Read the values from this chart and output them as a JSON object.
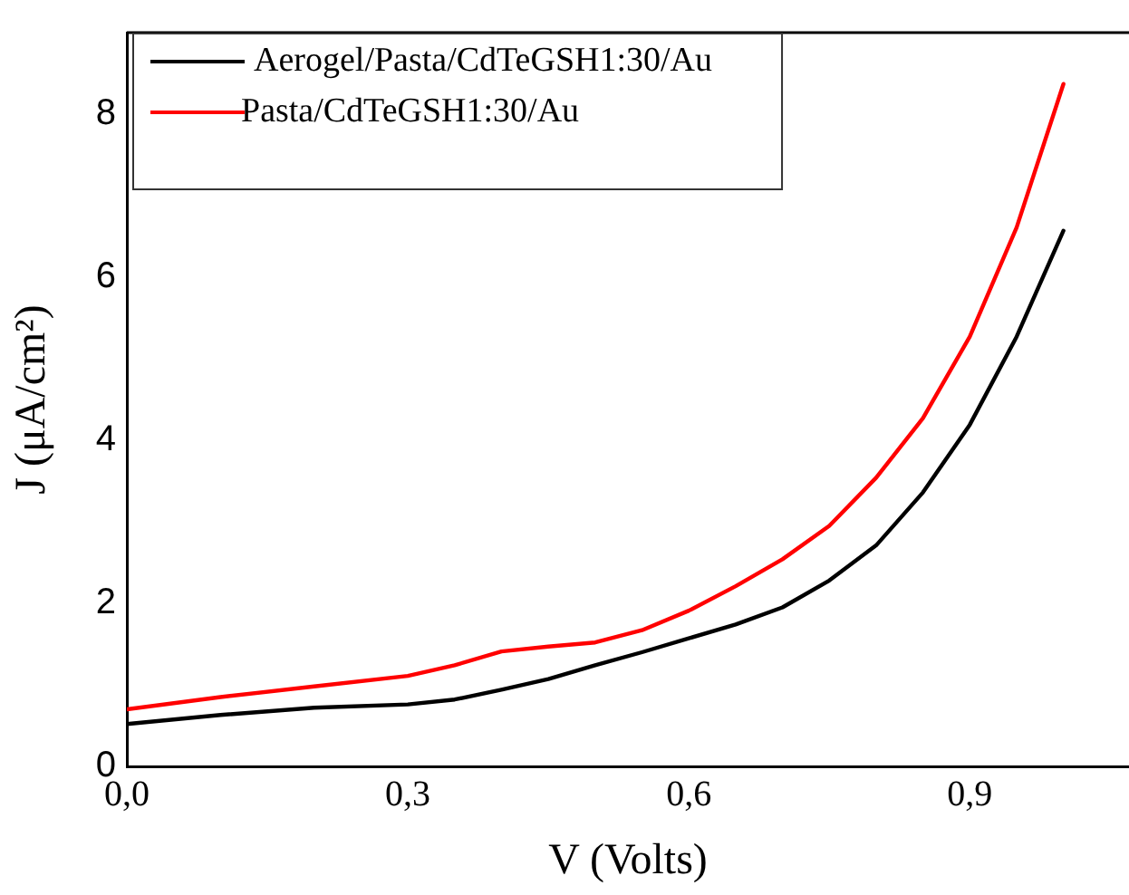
{
  "chart_data": {
    "type": "line",
    "xlabel": "V (Volts)",
    "ylabel": "J (μA/cm²)",
    "x": [
      0,
      0.1,
      0.2,
      0.3,
      0.35,
      0.4,
      0.45,
      0.5,
      0.55,
      0.6,
      0.65,
      0.7,
      0.75,
      0.8,
      0.85,
      0.9,
      0.95,
      1.0
    ],
    "series": [
      {
        "name": "Aerogel/Pasta/CdTeGSH1:30/Au",
        "color": "#000000",
        "values": [
          0.52,
          0.63,
          0.72,
          0.76,
          0.82,
          0.94,
          1.07,
          1.24,
          1.4,
          1.57,
          1.74,
          1.95,
          2.28,
          2.71,
          3.36,
          4.19,
          5.27,
          6.57
        ]
      },
      {
        "name": "Pasta/CdTeGSH1:30/Au",
        "color": "#ff0000",
        "values": [
          0.7,
          0.85,
          0.98,
          1.11,
          1.24,
          1.41,
          1.47,
          1.52,
          1.67,
          1.91,
          2.21,
          2.54,
          2.95,
          3.54,
          4.27,
          5.27,
          6.61,
          8.37
        ]
      }
    ],
    "xlim": [
      0,
      1.07
    ],
    "ylim": [
      0,
      9
    ],
    "xticks": [
      {
        "value": 0,
        "label": "0,0"
      },
      {
        "value": 0.3,
        "label": "0,3"
      },
      {
        "value": 0.6,
        "label": "0,6"
      },
      {
        "value": 0.9,
        "label": "0,9"
      }
    ],
    "yticks": [
      0,
      2,
      4,
      6,
      8
    ],
    "grid": false,
    "legend": "top left",
    "marker": "none",
    "line_style": "solid"
  }
}
